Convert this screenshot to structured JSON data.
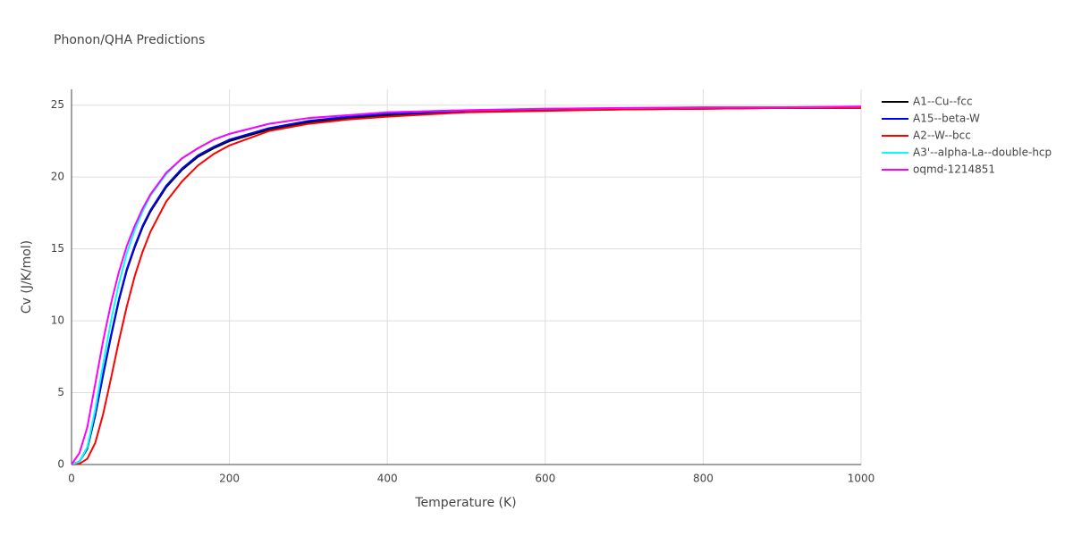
{
  "chart_data": {
    "type": "line",
    "title": "Phonon/QHA Predictions",
    "x_label": "Temperature (K)",
    "y_label": "Cv (J/K/mol)",
    "x": [
      0,
      10,
      20,
      30,
      40,
      50,
      60,
      70,
      80,
      90,
      100,
      120,
      140,
      160,
      180,
      200,
      250,
      300,
      350,
      400,
      500,
      600,
      700,
      800,
      900,
      1000
    ],
    "series": [
      {
        "name": "A1--Cu--fcc",
        "color": "#000000",
        "values": [
          0,
          0.2,
          1.1,
          3.4,
          6.2,
          8.9,
          11.4,
          13.5,
          15.1,
          16.5,
          17.6,
          19.3,
          20.5,
          21.4,
          22.0,
          22.5,
          23.3,
          23.8,
          24.1,
          24.3,
          24.55,
          24.65,
          24.7,
          24.75,
          24.8,
          24.8
        ]
      },
      {
        "name": "A15--beta-W",
        "color": "#0000ff",
        "values": [
          0,
          0.2,
          1.2,
          3.5,
          6.3,
          9.0,
          11.5,
          13.6,
          15.2,
          16.6,
          17.7,
          19.4,
          20.6,
          21.5,
          22.1,
          22.6,
          23.4,
          23.9,
          24.2,
          24.4,
          24.6,
          24.7,
          24.75,
          24.8,
          24.85,
          24.85
        ]
      },
      {
        "name": "A2--W--bcc",
        "color": "#ff0000",
        "values": [
          0,
          0.05,
          0.4,
          1.5,
          3.5,
          6.0,
          8.6,
          11.0,
          13.1,
          14.8,
          16.2,
          18.3,
          19.7,
          20.8,
          21.6,
          22.2,
          23.2,
          23.7,
          24.0,
          24.2,
          24.5,
          24.6,
          24.7,
          24.75,
          24.8,
          24.8
        ]
      },
      {
        "name": "A3'--alpha-La--double-hcp",
        "color": "#00ffff",
        "values": [
          0,
          0.2,
          1.2,
          3.8,
          7.0,
          10.0,
          12.6,
          14.7,
          16.3,
          17.6,
          18.7,
          20.2,
          21.3,
          22.0,
          22.6,
          23.0,
          23.7,
          24.1,
          24.3,
          24.5,
          24.65,
          24.75,
          24.8,
          24.85,
          24.85,
          24.9
        ]
      },
      {
        "name": "oqmd-1214851",
        "color": "#ff00ff",
        "values": [
          0,
          0.8,
          2.6,
          5.6,
          8.6,
          11.2,
          13.4,
          15.2,
          16.6,
          17.8,
          18.8,
          20.3,
          21.3,
          22.0,
          22.6,
          23.0,
          23.7,
          24.1,
          24.3,
          24.5,
          24.65,
          24.75,
          24.8,
          24.85,
          24.85,
          24.9
        ]
      }
    ],
    "xlim": [
      0,
      1000
    ],
    "ylim": [
      0,
      26.1
    ],
    "xticks": [
      0,
      200,
      400,
      600,
      800,
      1000
    ],
    "yticks": [
      0,
      5,
      10,
      15,
      20,
      25
    ],
    "grid": true,
    "legend": "right"
  }
}
